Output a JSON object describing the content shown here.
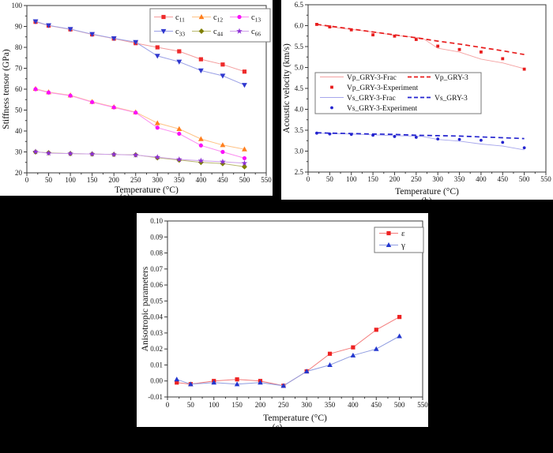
{
  "colors": {
    "background": "#000000",
    "panel": "#ffffff",
    "axis": "#3a3a3a",
    "text": "#141414"
  },
  "chart_data": [
    {
      "id": "a",
      "type": "line",
      "title": "",
      "xlabel": "Temperature (°C)",
      "ylabel": "Stiffness tensor (GPa)",
      "xlim": [
        0,
        550
      ],
      "ylim": [
        20,
        100
      ],
      "xticks": [
        0,
        50,
        100,
        150,
        200,
        250,
        300,
        350,
        400,
        450,
        500,
        550
      ],
      "x_minor_per_major": 2,
      "yticks": [
        20,
        30,
        40,
        50,
        60,
        70,
        80,
        90,
        100
      ],
      "ytick_labels": [
        "20",
        "30",
        "40",
        "50",
        "60",
        "70",
        "80",
        "90",
        "100"
      ],
      "y_minor_per_major": 2,
      "grid": false,
      "legend_position": "top-right",
      "cropped_caption": "(a)",
      "x": [
        20,
        50,
        100,
        150,
        200,
        250,
        300,
        350,
        400,
        450,
        500
      ],
      "series": [
        {
          "name": "c11",
          "legend_base": "c",
          "legend_sub": "11",
          "marker": "square",
          "marker_color": "#ee2b2b",
          "line_color": "#f49c9c",
          "marker_size": 2.6,
          "values": [
            92.2,
            90.4,
            88.6,
            86.2,
            84.2,
            82.0,
            80.0,
            78.1,
            74.3,
            71.8,
            68.4
          ]
        },
        {
          "name": "c12",
          "legend_base": "c",
          "legend_sub": "12",
          "marker": "triangle-up",
          "marker_color": "#ff7f1e",
          "line_color": "#ffc285",
          "marker_size": 3.1,
          "values": [
            60.2,
            58.6,
            57.1,
            54.0,
            51.5,
            49.0,
            43.8,
            41.0,
            36.2,
            33.3,
            31.3
          ]
        },
        {
          "name": "c13",
          "legend_base": "c",
          "legend_sub": "13",
          "marker": "circle",
          "marker_color": "#f911f9",
          "line_color": "#fb8df0",
          "marker_size": 2.6,
          "values": [
            60.0,
            58.4,
            56.9,
            53.8,
            51.3,
            48.8,
            41.6,
            38.7,
            33.1,
            30.0,
            27.0
          ]
        },
        {
          "name": "c33",
          "legend_base": "c",
          "legend_sub": "33",
          "marker": "triangle-down",
          "marker_color": "#3038cf",
          "line_color": "#9aa0e6",
          "marker_size": 3.1,
          "values": [
            92.4,
            90.5,
            88.7,
            86.3,
            84.3,
            82.5,
            75.9,
            73.1,
            68.9,
            66.4,
            62.0
          ]
        },
        {
          "name": "c44",
          "legend_base": "c",
          "legend_sub": "44",
          "marker": "diamond",
          "marker_color": "#7f7f00",
          "line_color": "#b9b96e",
          "marker_size": 3.0,
          "values": [
            30.0,
            29.6,
            29.2,
            29.0,
            28.8,
            28.6,
            27.2,
            26.1,
            25.0,
            24.4,
            22.9
          ]
        },
        {
          "name": "c66",
          "legend_base": "c",
          "legend_sub": "66",
          "marker": "star",
          "marker_color": "#8d2fd6",
          "line_color": "#cfa0ea",
          "marker_size": 3.2,
          "values": [
            30.1,
            29.4,
            29.2,
            29.0,
            28.8,
            28.5,
            27.5,
            26.4,
            25.8,
            25.3,
            24.6
          ]
        }
      ]
    },
    {
      "id": "b",
      "type": "line",
      "title": "",
      "xlabel": "Temperature (°C)",
      "ylabel": "Acoustic velocity (km/s)",
      "xlim": [
        0,
        550
      ],
      "ylim": [
        2.5,
        6.5
      ],
      "xticks": [
        0,
        50,
        100,
        150,
        200,
        250,
        300,
        350,
        400,
        450,
        500,
        550
      ],
      "x_minor_per_major": 2,
      "yticks": [
        2.5,
        3.0,
        3.5,
        4.0,
        4.5,
        5.0,
        5.5,
        6.0,
        6.5
      ],
      "ytick_labels": [
        "2.5",
        "3.0",
        "3.5",
        "4.0",
        "4.5",
        "5.0",
        "5.5",
        "6.0",
        "6.5"
      ],
      "y_minor_per_major": 2,
      "grid": false,
      "legend_position": "middle-left",
      "cropped_caption": "(b)",
      "x": [
        20,
        50,
        100,
        150,
        200,
        250,
        300,
        350,
        400,
        450,
        500
      ],
      "series": [
        {
          "name": "Vp_GRY-3-Frac",
          "marker": null,
          "line_color": "#f4a0a0",
          "line_width": 0.9,
          "x": [
            20,
            50,
            100,
            150,
            200,
            250,
            265,
            300,
            350,
            400,
            450,
            500
          ],
          "values": [
            6.03,
            5.97,
            5.91,
            5.85,
            5.77,
            5.72,
            5.7,
            5.46,
            5.37,
            5.2,
            5.11,
            4.97
          ]
        },
        {
          "name": "Vp_GRY-3",
          "marker": null,
          "line_color": "#e81c1c",
          "line_width": 1.7,
          "dash": "6,4",
          "values": [
            6.03,
            5.99,
            5.92,
            5.85,
            5.78,
            5.71,
            5.63,
            5.56,
            5.48,
            5.4,
            5.31
          ]
        },
        {
          "name": "Vp_GRY-3-Experiment",
          "marker": "square",
          "line": false,
          "marker_color": "#e81c1c",
          "marker_size": 1.9,
          "values": [
            6.03,
            5.97,
            5.9,
            5.78,
            5.75,
            5.67,
            5.51,
            5.43,
            5.37,
            5.21,
            4.96
          ]
        },
        {
          "name": "Vs_GRY-3-Frac",
          "marker": null,
          "line_color": "#a6a6ec",
          "line_width": 0.9,
          "x": [
            20,
            50,
            100,
            150,
            200,
            250,
            265,
            300,
            350,
            400,
            450,
            500
          ],
          "values": [
            3.43,
            3.42,
            3.41,
            3.39,
            3.37,
            3.36,
            3.35,
            3.28,
            3.24,
            3.17,
            3.12,
            3.03
          ]
        },
        {
          "name": "Vs_GRY-3",
          "marker": null,
          "line_color": "#2323cf",
          "line_width": 1.7,
          "dash": "6,4",
          "values": [
            3.44,
            3.43,
            3.42,
            3.41,
            3.4,
            3.38,
            3.37,
            3.36,
            3.34,
            3.32,
            3.3
          ]
        },
        {
          "name": "Vs_GRY-3-Experiment",
          "marker": "dot",
          "line": false,
          "marker_color": "#2323cf",
          "marker_size": 1.9,
          "values": [
            3.43,
            3.41,
            3.4,
            3.38,
            3.35,
            3.33,
            3.29,
            3.28,
            3.26,
            3.21,
            3.08
          ]
        }
      ],
      "legend_items": [
        {
          "sample": "line",
          "color": "#f4a0a0",
          "label": "Vp_GRY-3-Frac",
          "row": 0,
          "col": 0
        },
        {
          "sample": "dash",
          "color": "#e81c1c",
          "label": "Vp_GRY-3",
          "row": 0,
          "col": 1
        },
        {
          "sample": "square",
          "color": "#e81c1c",
          "label": "Vp_GRY-3-Experiment",
          "row": 1,
          "col": 0
        },
        {
          "sample": "line",
          "color": "#a6a6ec",
          "label": "Vs_GRY-3-Frac",
          "row": 2,
          "col": 0
        },
        {
          "sample": "dash",
          "color": "#2323cf",
          "label": "Vs_GRY-3",
          "row": 2,
          "col": 1
        },
        {
          "sample": "dot",
          "color": "#2323cf",
          "label": "Vs_GRY-3-Experiment",
          "row": 3,
          "col": 0
        }
      ]
    },
    {
      "id": "c",
      "type": "line",
      "title": "",
      "xlabel": "Temperature (°C)",
      "ylabel": "Anisotropic parameters",
      "xlim": [
        0,
        550
      ],
      "ylim": [
        -0.01,
        0.1
      ],
      "xticks": [
        0,
        50,
        100,
        150,
        200,
        250,
        300,
        350,
        400,
        450,
        500,
        550
      ],
      "x_minor_per_major": 2,
      "yticks": [
        -0.01,
        0.0,
        0.01,
        0.02,
        0.03,
        0.04,
        0.05,
        0.06,
        0.07,
        0.08,
        0.09,
        0.1
      ],
      "ytick_labels": [
        "-0.01",
        "0.00",
        "0.01",
        "0.02",
        "0.03",
        "0.04",
        "0.05",
        "0.06",
        "0.07",
        "0.08",
        "0.09",
        "0.10"
      ],
      "y_minor_per_major": 1,
      "grid": false,
      "legend_position": "top-right",
      "cropped_caption": "(c)",
      "x": [
        20,
        50,
        100,
        150,
        200,
        250,
        300,
        350,
        400,
        450,
        500
      ],
      "series": [
        {
          "name": "epsilon",
          "legend_label": "ε",
          "marker": "square",
          "marker_color": "#ee2222",
          "line_color": "#f47a7a",
          "marker_size": 2.6,
          "values": [
            -0.001,
            -0.002,
            0.0,
            0.001,
            0.0,
            -0.003,
            0.006,
            0.017,
            0.021,
            0.032,
            0.04
          ]
        },
        {
          "name": "gamma",
          "legend_label": "γ",
          "marker": "triangle-up",
          "marker_color": "#2337cf",
          "line_color": "#8f9ce0",
          "marker_size": 3.0,
          "values": [
            0.001,
            -0.002,
            -0.001,
            -0.002,
            -0.001,
            -0.003,
            0.006,
            0.01,
            0.016,
            0.02,
            0.028
          ]
        }
      ]
    }
  ]
}
